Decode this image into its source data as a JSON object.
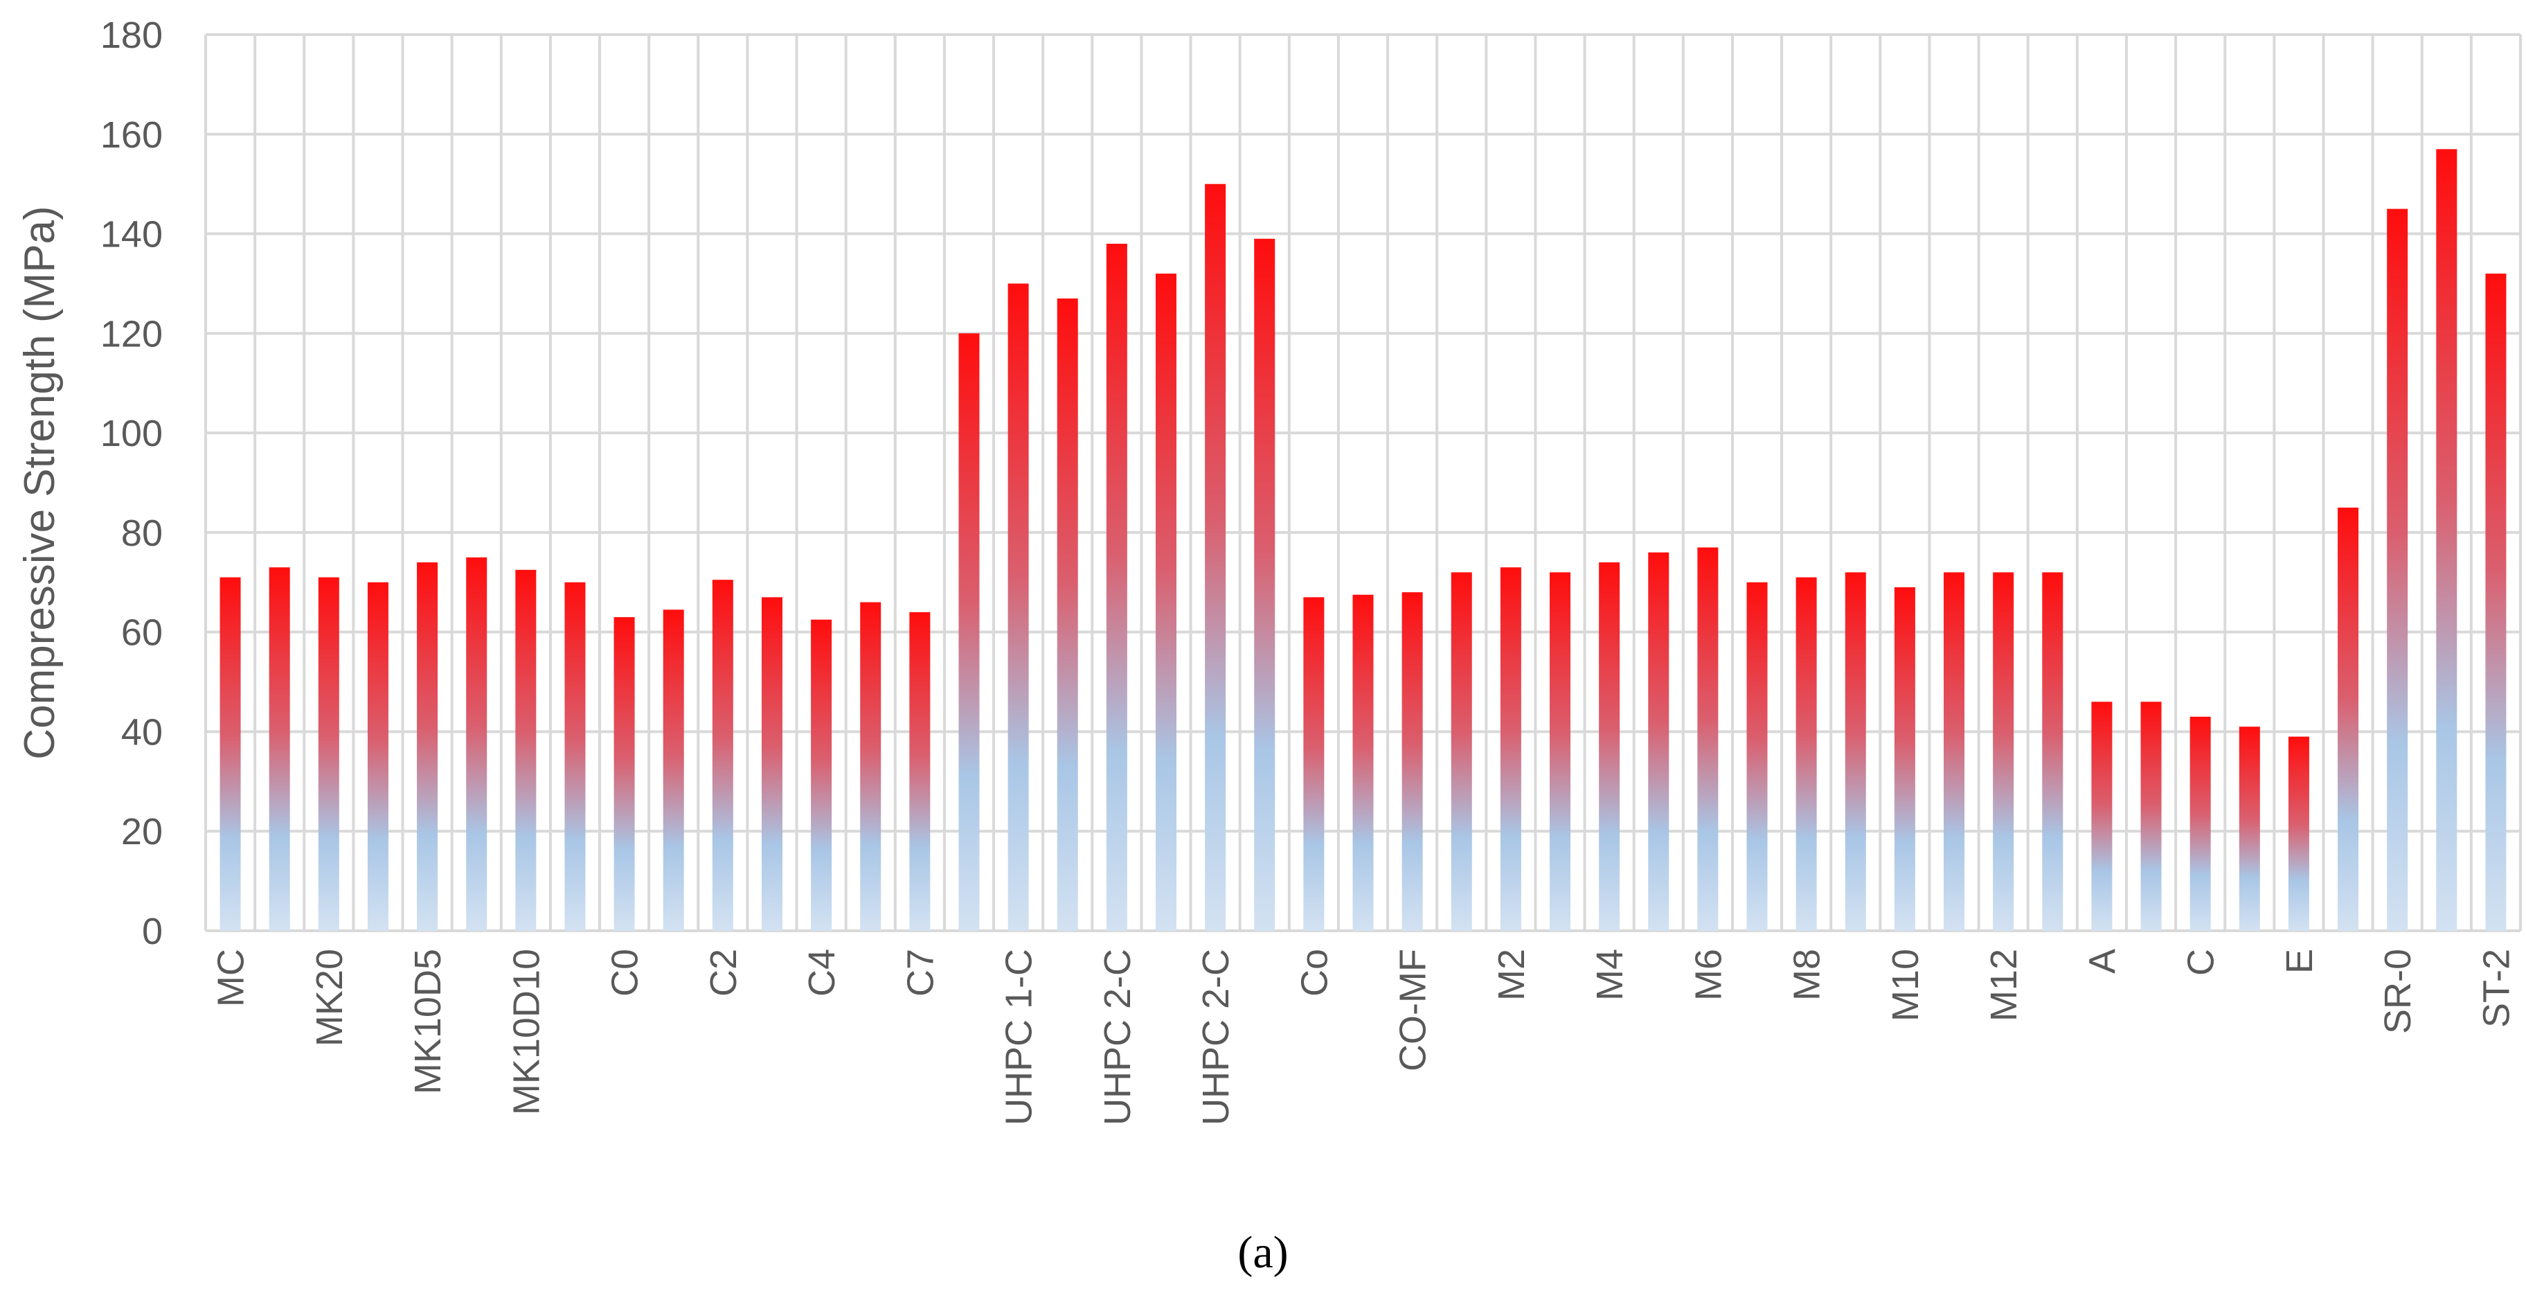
{
  "colors": {
    "bar_top": "#ff0d0d",
    "bar_mid": "#da5f6e",
    "bar_bottom": "#a9c6e6",
    "bar_base": "#d3e2f2",
    "grid": "#d9d9d9",
    "text": "#595959"
  },
  "caption": "(a)",
  "chart_data": {
    "type": "bar",
    "title": "",
    "ylabel": "Compressive Strength (MPa)",
    "xlabel": "",
    "ylim": [
      0,
      180
    ],
    "yticks": [
      0,
      20,
      40,
      60,
      80,
      100,
      120,
      140,
      160,
      180
    ],
    "grid": true,
    "categories": [
      "MC",
      "",
      "MK20",
      "",
      "MK10D5",
      "",
      "MK10D10",
      "",
      "C0",
      "",
      "C2",
      "",
      "C4",
      "",
      "C7",
      "",
      "UHPC 1-C",
      "",
      "UHPC 2-C",
      "",
      "UHPC 2-C",
      "",
      "Co",
      "",
      "CO-MF",
      "",
      "M2",
      "",
      "M4",
      "",
      "M6",
      "",
      "M8",
      "",
      "M10",
      "",
      "M12",
      "",
      "A",
      "",
      "C",
      "",
      "E",
      "",
      "SR-0",
      "",
      "ST-2"
    ],
    "values": [
      71,
      73,
      71,
      70,
      74,
      75,
      72.5,
      70,
      63,
      64.5,
      70.5,
      67,
      62.5,
      66,
      64,
      120,
      130,
      127,
      138,
      132,
      150,
      139,
      67,
      67.5,
      68,
      72,
      73,
      72,
      74,
      76,
      77,
      70,
      71,
      72,
      69,
      72,
      72,
      72,
      46,
      46,
      43,
      41,
      39,
      85,
      145,
      157,
      132
    ]
  }
}
